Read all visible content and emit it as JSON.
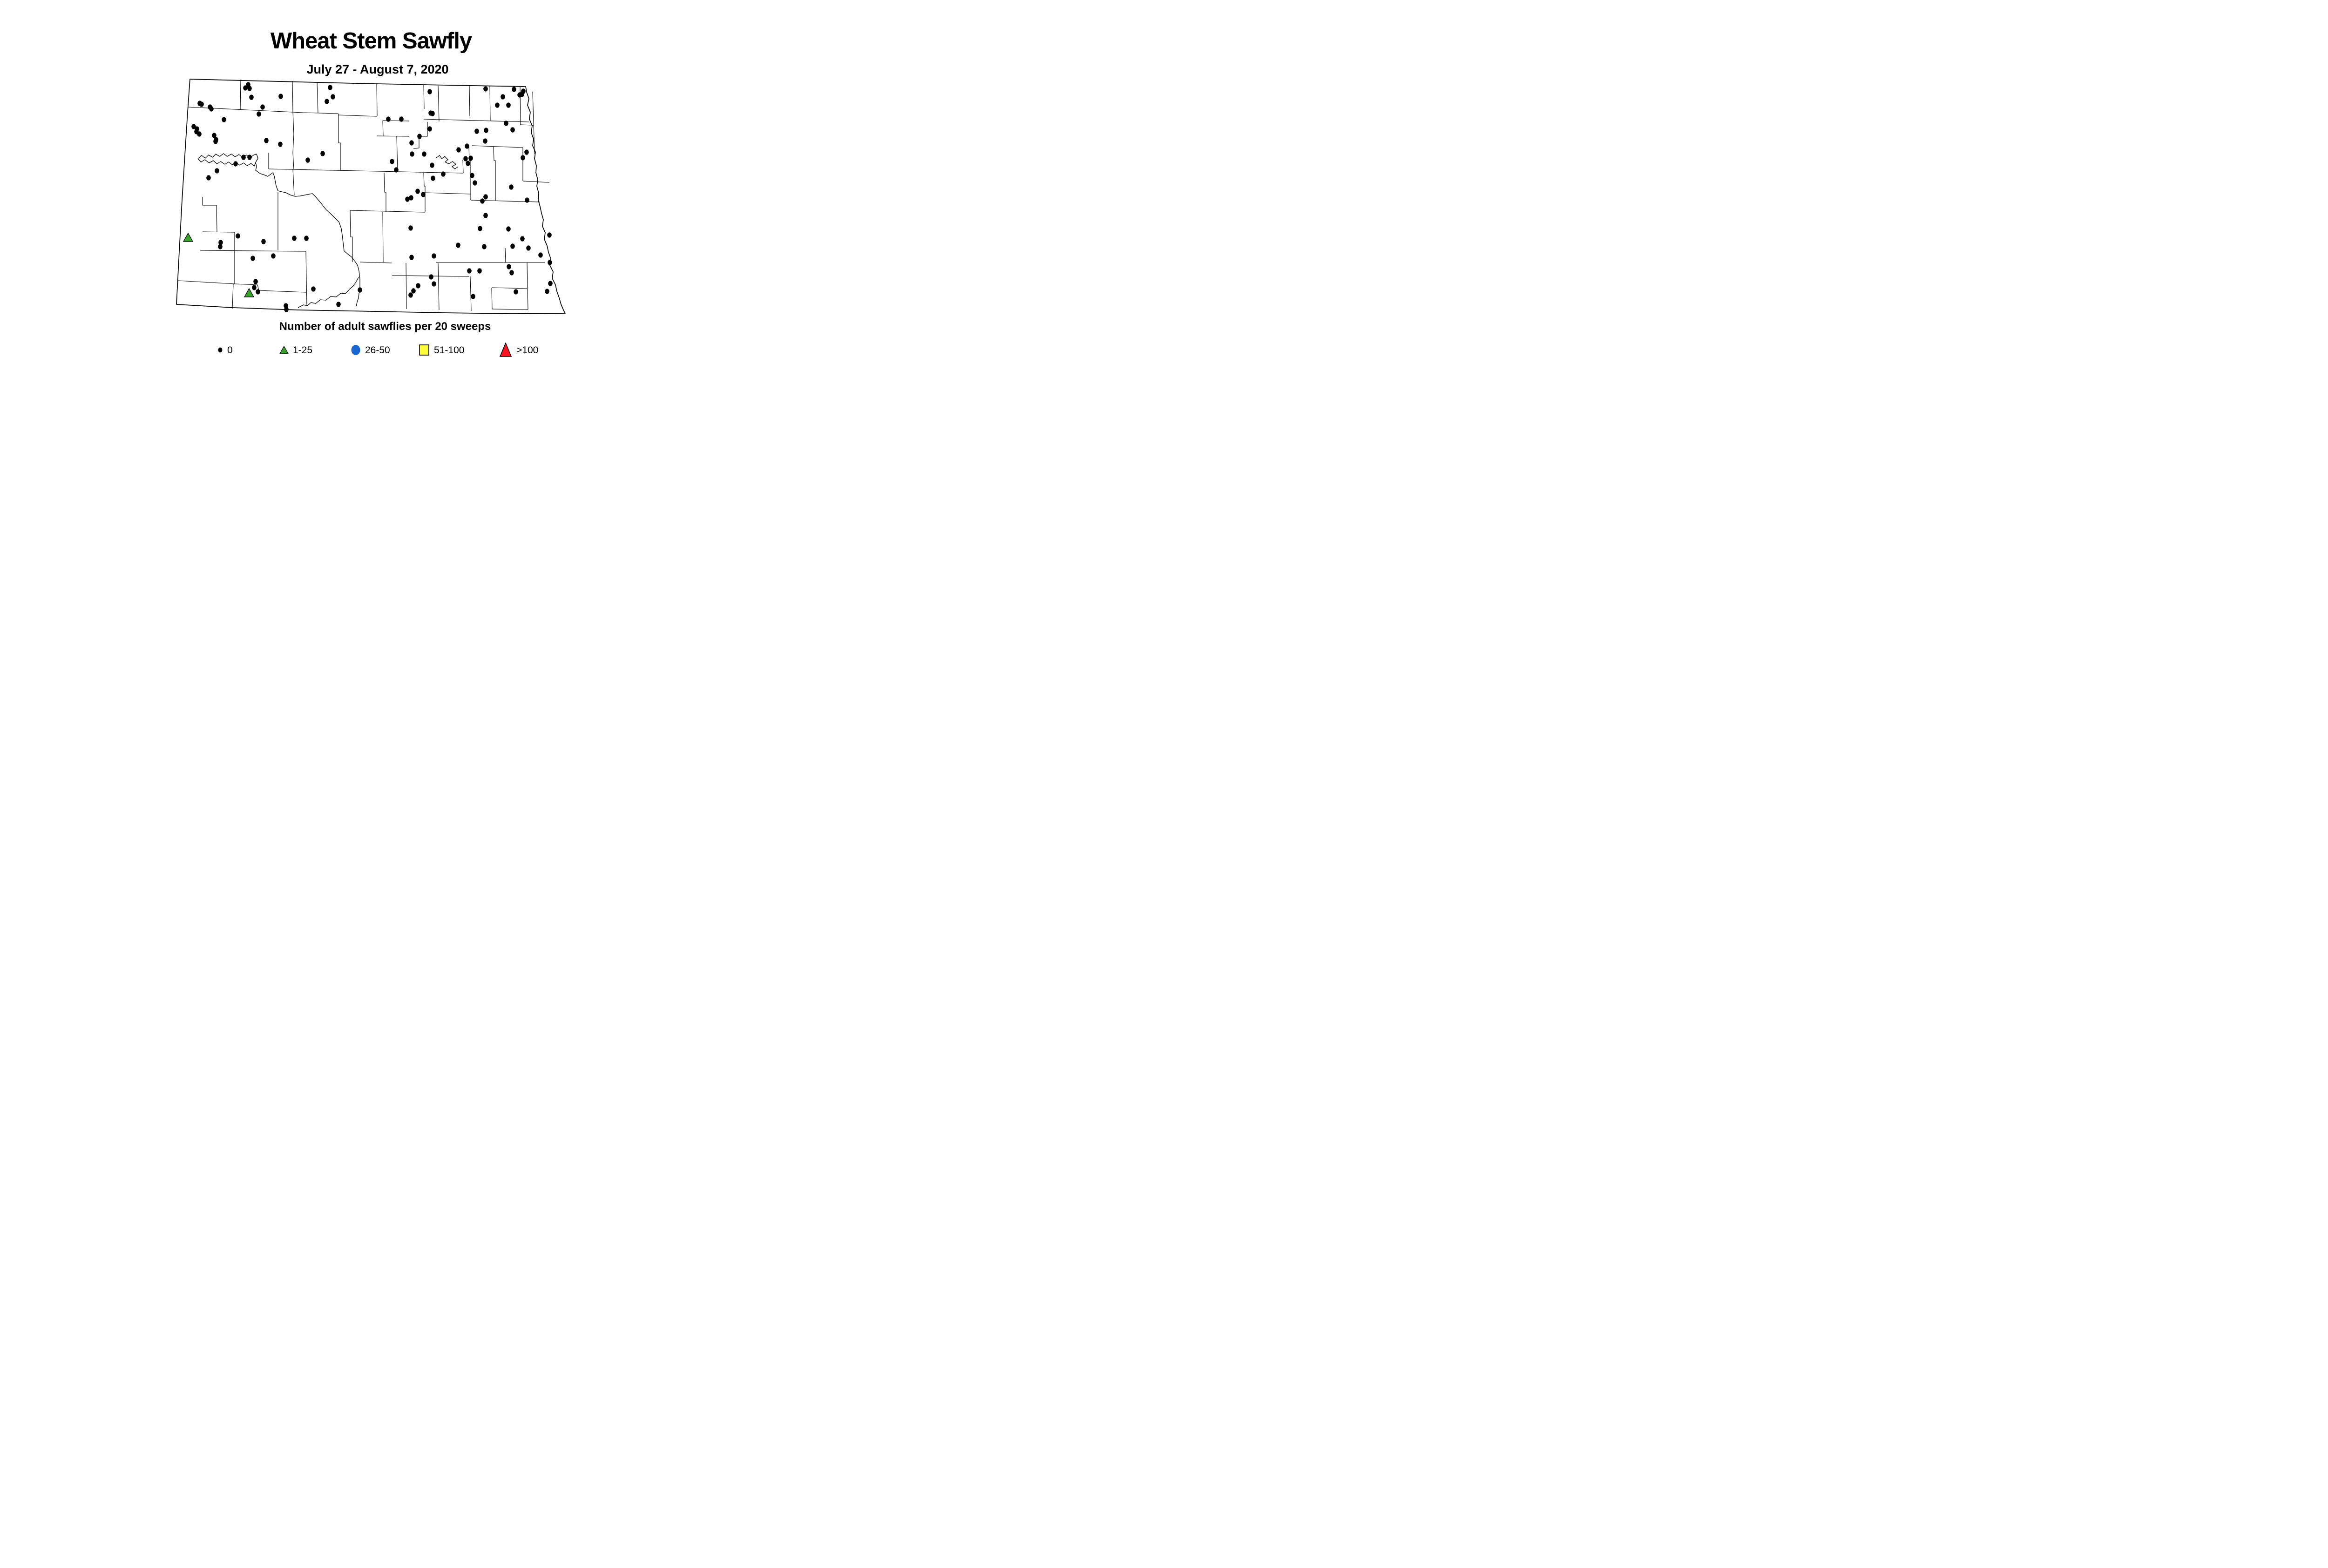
{
  "title": "Wheat Stem Sawfly",
  "subtitle": "July 27 - August 7, 2020",
  "legend": {
    "caption": "Number of adult sawflies per 20 sweeps",
    "items": [
      {
        "label": "0",
        "marker": "small-dot",
        "color": "#000000"
      },
      {
        "label": "1-25",
        "marker": "triangle",
        "color": "#3AA32C"
      },
      {
        "label": "26-50",
        "marker": "circle",
        "color": "#1766D1"
      },
      {
        "label": "51-100",
        "marker": "square",
        "color": "#FCFC3B"
      },
      {
        "label": ">100",
        "marker": "large-triangle",
        "color": "#FA1420"
      }
    ]
  },
  "chart_data": {
    "type": "scatter",
    "region": "North Dakota county map",
    "coordinate_space": [
      1568,
      818
    ],
    "legend_position": "bottom",
    "series": [
      {
        "name": "0",
        "marker": "dot",
        "color": "#000000",
        "points": [
          [
            533,
            182
          ],
          [
            527,
            189
          ],
          [
            536,
            190
          ],
          [
            540,
            209
          ],
          [
            603,
            207
          ],
          [
            429,
            222
          ],
          [
            433,
            224
          ],
          [
            451,
            230
          ],
          [
            454,
            234
          ],
          [
            481,
            257
          ],
          [
            416,
            272
          ],
          [
            423,
            277
          ],
          [
            422,
            283
          ],
          [
            428,
            288
          ],
          [
            460,
            291
          ],
          [
            464,
            300
          ],
          [
            463,
            304
          ],
          [
            523,
            338
          ],
          [
            536,
            338
          ],
          [
            506,
            352
          ],
          [
            466,
            367
          ],
          [
            448,
            382
          ],
          [
            709,
            188
          ],
          [
            715,
            208
          ],
          [
            702,
            218
          ],
          [
            564,
            230
          ],
          [
            556,
            245
          ],
          [
            572,
            302
          ],
          [
            602,
            310
          ],
          [
            693,
            330
          ],
          [
            661,
            344
          ],
          [
            923,
            197
          ],
          [
            925,
            243
          ],
          [
            929,
            244
          ],
          [
            834,
            256
          ],
          [
            862,
            256
          ],
          [
            923,
            277
          ],
          [
            901,
            293
          ],
          [
            884,
            307
          ],
          [
            885,
            331
          ],
          [
            911,
            331
          ],
          [
            842,
            347
          ],
          [
            851,
            365
          ],
          [
            928,
            355
          ],
          [
            930,
            383
          ],
          [
            952,
            374
          ],
          [
            897,
            411
          ],
          [
            909,
            418
          ],
          [
            875,
            428
          ],
          [
            883,
            425
          ],
          [
            1043,
            191
          ],
          [
            1104,
            192
          ],
          [
            1124,
            196
          ],
          [
            1116,
            204
          ],
          [
            1121,
            203
          ],
          [
            1080,
            208
          ],
          [
            1068,
            226
          ],
          [
            1092,
            226
          ],
          [
            1087,
            265
          ],
          [
            1101,
            279
          ],
          [
            1024,
            282
          ],
          [
            1044,
            280
          ],
          [
            1042,
            303
          ],
          [
            1003,
            314
          ],
          [
            985,
            322
          ],
          [
            1000,
            341
          ],
          [
            1011,
            340
          ],
          [
            1005,
            351
          ],
          [
            1131,
            327
          ],
          [
            1123,
            339
          ],
          [
            1014,
            377
          ],
          [
            1020,
            393
          ],
          [
            1098,
            402
          ],
          [
            1036,
            432
          ],
          [
            1043,
            423
          ],
          [
            1132,
            430
          ],
          [
            882,
            490
          ],
          [
            884,
            553
          ],
          [
            932,
            550
          ],
          [
            1043,
            463
          ],
          [
            1031,
            491
          ],
          [
            1092,
            492
          ],
          [
            1122,
            513
          ],
          [
            984,
            527
          ],
          [
            1040,
            530
          ],
          [
            1101,
            529
          ],
          [
            1135,
            533
          ],
          [
            1180,
            505
          ],
          [
            1161,
            548
          ],
          [
            1181,
            564
          ],
          [
            1093,
            573
          ],
          [
            1099,
            586
          ],
          [
            1008,
            582
          ],
          [
            1030,
            582
          ],
          [
            474,
            521
          ],
          [
            473,
            530
          ],
          [
            511,
            507
          ],
          [
            566,
            519
          ],
          [
            543,
            555
          ],
          [
            587,
            550
          ],
          [
            632,
            512
          ],
          [
            658,
            512
          ],
          [
            549,
            605
          ],
          [
            546,
            618
          ],
          [
            554,
            627
          ],
          [
            614,
            657
          ],
          [
            615,
            665
          ],
          [
            673,
            621
          ],
          [
            773,
            623
          ],
          [
            727,
            654
          ],
          [
            926,
            595
          ],
          [
            932,
            610
          ],
          [
            898,
            614
          ],
          [
            888,
            625
          ],
          [
            882,
            634
          ],
          [
            1182,
            609
          ],
          [
            1175,
            626
          ],
          [
            1108,
            627
          ],
          [
            1016,
            637
          ]
        ]
      },
      {
        "name": "1-25",
        "marker": "triangle",
        "color": "#3AA32C",
        "points": [
          [
            404,
            511
          ],
          [
            535,
            630
          ]
        ]
      },
      {
        "name": "26-50",
        "marker": "circle",
        "color": "#1766D1",
        "points": []
      },
      {
        "name": "51-100",
        "marker": "square",
        "color": "#FCFC3B",
        "points": []
      },
      {
        "name": ">100",
        "marker": "large-triangle",
        "color": "#FA1420",
        "points": []
      }
    ]
  }
}
